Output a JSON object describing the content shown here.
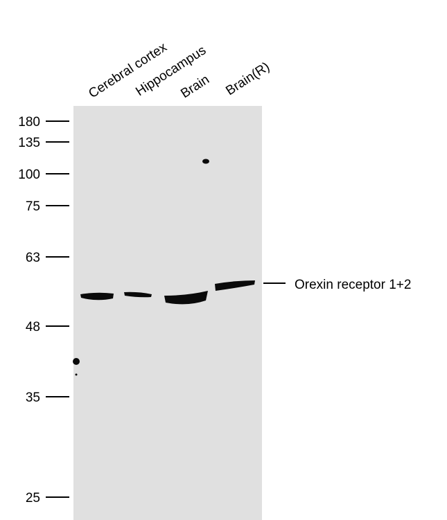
{
  "lanes": [
    "Cerebral cortex",
    "Hippocampus",
    "Brain",
    "Brain(R)"
  ],
  "markers": [
    "180",
    "135",
    "100",
    "75",
    "63",
    "48",
    "35",
    "25"
  ],
  "band_label": "Orexin receptor 1+2"
}
